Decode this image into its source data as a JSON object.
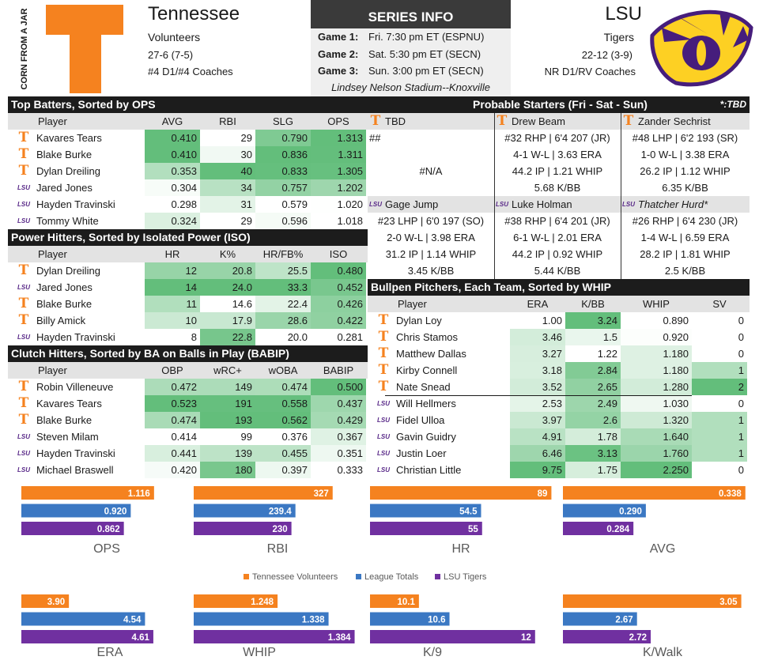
{
  "header": {
    "home": {
      "name": "Tennessee",
      "nickname": "Volunteers",
      "record": "27-6 (7-5)",
      "rank": "#4 D1/#4 Coaches",
      "logo_text": "CORN FROM A JAR"
    },
    "away": {
      "name": "LSU",
      "nickname": "Tigers",
      "record": "22-12 (3-9)",
      "rank": "NR D1/RV Coaches"
    }
  },
  "series": {
    "title": "SERIES INFO",
    "games": [
      {
        "label": "Game 1:",
        "text": "Fri. 7:30 pm ET (ESPNU)"
      },
      {
        "label": "Game 2:",
        "text": "Sat. 5:30 pm ET (SECN)"
      },
      {
        "label": "Game 3:",
        "text": "Sun. 3:00 pm ET (SECN)"
      }
    ],
    "venue": "Lindsey Nelson Stadium--Knoxville"
  },
  "tables": {
    "batters": {
      "title": "Top Batters, Sorted by OPS",
      "columns": [
        "Player",
        "AVG",
        "RBI",
        "SLG",
        "OPS"
      ],
      "rows": [
        {
          "team": "T",
          "cells": [
            "Kavares Tears",
            "0.410",
            "29",
            "0.790",
            "1.313"
          ]
        },
        {
          "team": "T",
          "cells": [
            "Blake Burke",
            "0.410",
            "30",
            "0.836",
            "1.311"
          ]
        },
        {
          "team": "T",
          "cells": [
            "Dylan Dreiling",
            "0.353",
            "40",
            "0.833",
            "1.305"
          ]
        },
        {
          "team": "LSU",
          "cells": [
            "Jared Jones",
            "0.304",
            "34",
            "0.757",
            "1.202"
          ]
        },
        {
          "team": "LSU",
          "cells": [
            "Hayden Travinski",
            "0.298",
            "31",
            "0.579",
            "1.020"
          ]
        },
        {
          "team": "LSU",
          "cells": [
            "Tommy White",
            "0.324",
            "29",
            "0.596",
            "1.018"
          ]
        }
      ]
    },
    "power": {
      "title": "Power Hitters, Sorted by Isolated Power (ISO)",
      "columns": [
        "Player",
        "HR",
        "K%",
        "HR/FB%",
        "ISO"
      ],
      "rows": [
        {
          "team": "T",
          "cells": [
            "Dylan Dreiling",
            "12",
            "20.8",
            "25.5",
            "0.480"
          ]
        },
        {
          "team": "LSU",
          "cells": [
            "Jared Jones",
            "14",
            "24.0",
            "33.3",
            "0.452"
          ]
        },
        {
          "team": "T",
          "cells": [
            "Blake Burke",
            "11",
            "14.6",
            "22.4",
            "0.426"
          ]
        },
        {
          "team": "T",
          "cells": [
            "Billy Amick",
            "10",
            "17.9",
            "28.6",
            "0.422"
          ]
        },
        {
          "team": "LSU",
          "cells": [
            "Hayden Travinski",
            "8",
            "22.8",
            "20.0",
            "0.281"
          ]
        }
      ]
    },
    "clutch": {
      "title": "Clutch Hitters, Sorted by BA on Balls in Play (BABIP)",
      "columns": [
        "Player",
        "OBP",
        "wRC+",
        "wOBA",
        "BABIP"
      ],
      "rows": [
        {
          "team": "T",
          "cells": [
            "Robin Villeneuve",
            "0.472",
            "149",
            "0.474",
            "0.500"
          ]
        },
        {
          "team": "T",
          "cells": [
            "Kavares Tears",
            "0.523",
            "191",
            "0.558",
            "0.437"
          ]
        },
        {
          "team": "T",
          "cells": [
            "Blake Burke",
            "0.474",
            "193",
            "0.562",
            "0.429"
          ]
        },
        {
          "team": "LSU",
          "cells": [
            "Steven Milam",
            "0.414",
            "99",
            "0.376",
            "0.367"
          ]
        },
        {
          "team": "LSU",
          "cells": [
            "Hayden Travinski",
            "0.441",
            "139",
            "0.455",
            "0.351"
          ]
        },
        {
          "team": "LSU",
          "cells": [
            "Michael Braswell",
            "0.420",
            "180",
            "0.397",
            "0.333"
          ]
        }
      ]
    },
    "bullpen": {
      "title": "Bullpen Pitchers, Each Team, Sorted by WHIP",
      "columns": [
        "Player",
        "ERA",
        "K/BB",
        "WHIP",
        "SV"
      ],
      "rows": [
        {
          "team": "T",
          "cells": [
            "Dylan Loy",
            "1.00",
            "3.24",
            "0.890",
            "0"
          ]
        },
        {
          "team": "T",
          "cells": [
            "Chris Stamos",
            "3.46",
            "1.5",
            "0.920",
            "0"
          ]
        },
        {
          "team": "T",
          "cells": [
            "Matthew Dallas",
            "3.27",
            "1.22",
            "1.180",
            "0"
          ]
        },
        {
          "team": "T",
          "cells": [
            "Kirby Connell",
            "3.18",
            "2.84",
            "1.180",
            "1"
          ]
        },
        {
          "team": "T",
          "cells": [
            "Nate Snead",
            "3.52",
            "2.65",
            "1.280",
            "2"
          ]
        },
        {
          "team": "LSU",
          "cells": [
            "Will Hellmers",
            "2.53",
            "2.49",
            "1.030",
            "0"
          ]
        },
        {
          "team": "LSU",
          "cells": [
            "Fidel Ulloa",
            "3.97",
            "2.6",
            "1.320",
            "1"
          ]
        },
        {
          "team": "LSU",
          "cells": [
            "Gavin Guidry",
            "4.91",
            "1.78",
            "1.640",
            "1"
          ]
        },
        {
          "team": "LSU",
          "cells": [
            "Justin Loer",
            "6.46",
            "3.13",
            "1.760",
            "1"
          ]
        },
        {
          "team": "LSU",
          "cells": [
            "Christian Little",
            "9.75",
            "1.75",
            "2.250",
            "0"
          ]
        }
      ]
    }
  },
  "starters": {
    "title": "Probable Starters (Fri - Sat - Sun)",
    "note": "*:TBD",
    "rows": [
      [
        {
          "team": "T",
          "name": "TBD",
          "lines": [
            "##",
            "#N/A"
          ]
        },
        {
          "team": "T",
          "name": "Drew Beam",
          "lines": [
            "#32 RHP | 6'4 207 (JR)",
            "4-1 W-L | 3.63 ERA",
            "44.2 IP | 1.21 WHIP",
            "5.68 K/BB"
          ]
        },
        {
          "team": "T",
          "name": "Zander Sechrist",
          "lines": [
            "#48 LHP | 6'2 193 (SR)",
            "1-0 W-L | 3.38 ERA",
            "26.2 IP | 1.12 WHIP",
            "6.35 K/BB"
          ]
        }
      ],
      [
        {
          "team": "LSU",
          "name": "Gage Jump",
          "lines": [
            "#23 LHP | 6'0 197 (SO)",
            "2-0 W-L | 3.98 ERA",
            "31.2 IP | 1.14 WHIP",
            "3.45 K/BB"
          ]
        },
        {
          "team": "LSU",
          "name": "Luke Holman",
          "lines": [
            "#38 RHP | 6'4 201 (JR)",
            "6-1 W-L | 2.01 ERA",
            "44.2 IP | 0.92 WHIP",
            "5.44 K/BB"
          ]
        },
        {
          "team": "LSU",
          "name": "Thatcher Hurd*",
          "italic": true,
          "lines": [
            "#26 RHP | 6'4 230 (JR)",
            "1-4 W-L | 6.59 ERA",
            "28.2 IP | 1.81 WHIP",
            "2.5 K/BB"
          ]
        }
      ]
    ]
  },
  "legend": [
    {
      "name": "Tennessee Volunteers",
      "color": "#f5821f"
    },
    {
      "name": "League Totals",
      "color": "#3b78c3"
    },
    {
      "name": "LSU Tigers",
      "color": "#7030a0"
    }
  ],
  "chart_data": [
    {
      "type": "bar",
      "title": "OPS",
      "xlim": [
        0,
        1.25
      ],
      "values": [
        1.116,
        0.92,
        0.862
      ],
      "value_labels": [
        "1.116",
        "0.920",
        "0.862"
      ]
    },
    {
      "type": "bar",
      "title": "RBI",
      "xlim": [
        0,
        400
      ],
      "values": [
        327,
        239.4,
        230
      ]
    },
    {
      "type": "bar",
      "title": "HR",
      "xlim": [
        0,
        90
      ],
      "values": [
        89,
        54.5,
        55
      ]
    },
    {
      "type": "bar",
      "title": "AVG",
      "xlim": [
        0.25,
        0.34
      ],
      "values": [
        0.338,
        0.29,
        0.284
      ],
      "value_labels": [
        "0.338",
        "0.290",
        "0.284"
      ]
    },
    {
      "type": "bar",
      "title": "ERA",
      "xlim": [
        3.5,
        4.75
      ],
      "values": [
        3.9,
        4.54,
        4.61
      ],
      "value_labels": [
        "3.90",
        "4.54",
        "4.61"
      ]
    },
    {
      "type": "bar",
      "title": "WHIP",
      "xlim": [
        1.1,
        1.4
      ],
      "values": [
        1.248,
        1.338,
        1.384
      ]
    },
    {
      "type": "bar",
      "title": "K/9",
      "xlim": [
        9.3,
        12.3
      ],
      "values": [
        10.1,
        10.6,
        12
      ]
    },
    {
      "type": "bar",
      "title": "K/Walk",
      "xlim": [
        2.4,
        3.08
      ],
      "values": [
        3.05,
        2.67,
        2.72
      ]
    }
  ]
}
